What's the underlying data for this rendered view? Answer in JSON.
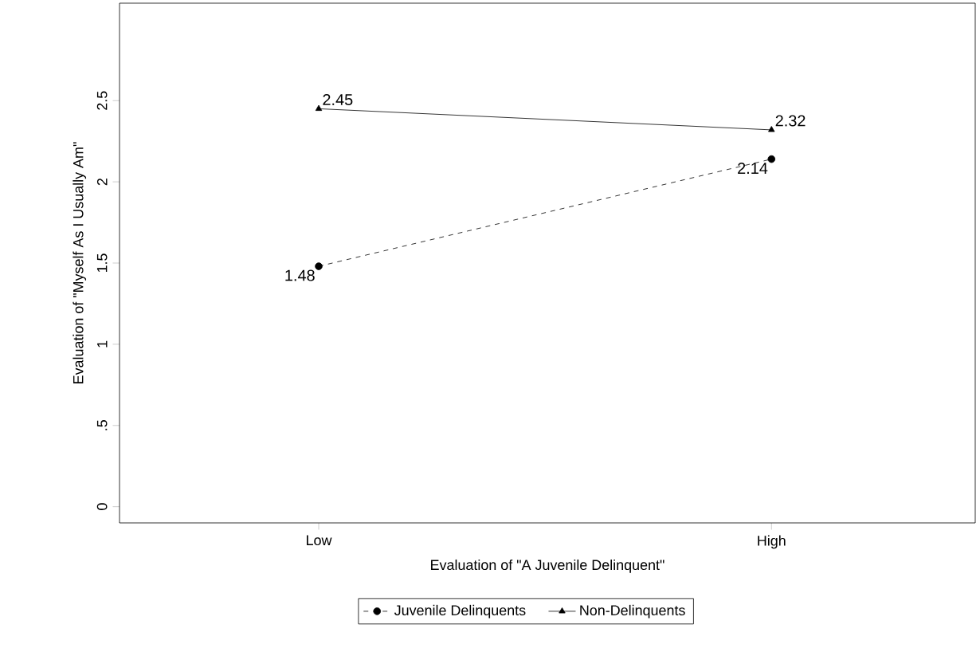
{
  "chart_data": {
    "type": "line",
    "xlabel": "Evaluation of \"A Juvenile Delinquent\"",
    "ylabel": "Evaluation of \"Myself As I Usually Am\"",
    "categories": [
      "Low",
      "High"
    ],
    "series": [
      {
        "name": "Juvenile Delinquents",
        "color": "#000000",
        "values": [
          1.48,
          2.14
        ],
        "marker": "circle",
        "line_style": "dashed"
      },
      {
        "name": "Non-Delinquents",
        "color": "#000000",
        "values": [
          2.45,
          2.32
        ],
        "marker": "triangle",
        "line_style": "solid"
      }
    ],
    "ylim": [
      -0.1,
      3.1
    ],
    "yticks": [
      0,
      {
        "value": 0.5,
        "label": ".5"
      },
      1,
      1.5,
      2,
      2.5
    ],
    "data_labels": true,
    "legend": "bottom"
  }
}
